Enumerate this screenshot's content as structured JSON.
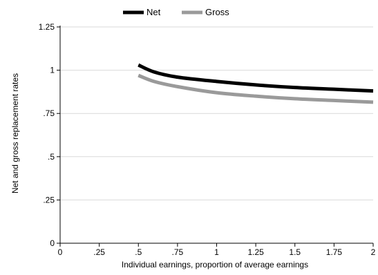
{
  "chart_data": {
    "type": "line",
    "title": "",
    "xlabel": "Individual earnings, proportion of average earnings",
    "ylabel": "Net and gross replacement rates",
    "xlim": [
      0,
      2
    ],
    "ylim": [
      0,
      1.25
    ],
    "x_ticks": [
      0,
      0.25,
      0.5,
      0.75,
      1,
      1.25,
      1.5,
      1.75,
      2
    ],
    "x_tick_labels": [
      "0",
      ".25",
      ".5",
      ".75",
      "1",
      "1.25",
      "1.5",
      "1.75",
      "2"
    ],
    "y_ticks": [
      0,
      0.25,
      0.5,
      0.75,
      1,
      1.25
    ],
    "y_tick_labels": [
      "0",
      ".25",
      ".5",
      ".75",
      "1",
      "1.25"
    ],
    "grid": "horizontal",
    "legend_position": "top",
    "x": [
      0.5,
      0.6,
      0.75,
      1.0,
      1.25,
      1.5,
      1.75,
      2.0
    ],
    "series": [
      {
        "name": "Net",
        "color": "#000000",
        "values": [
          1.03,
          0.99,
          0.96,
          0.935,
          0.915,
          0.9,
          0.89,
          0.88
        ]
      },
      {
        "name": "Gross",
        "color": "#9a9a9a",
        "values": [
          0.97,
          0.935,
          0.905,
          0.87,
          0.85,
          0.835,
          0.825,
          0.815
        ]
      }
    ]
  }
}
